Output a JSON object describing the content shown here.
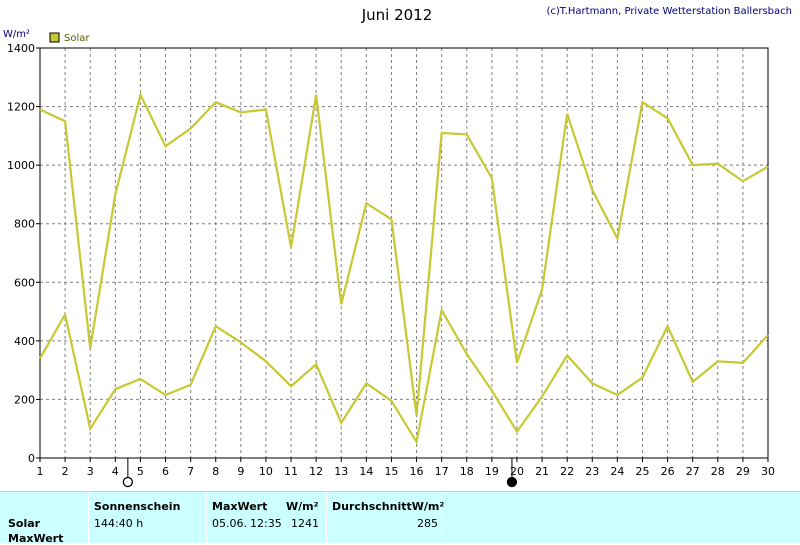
{
  "chart_data": {
    "type": "line",
    "title": "Juni 2012",
    "credit": "(c)T.Hartmann, Private Wetterstation Ballersbach",
    "ylabel": "W/m²",
    "ylim": [
      0,
      1400
    ],
    "yticks": [
      0,
      200,
      400,
      600,
      800,
      1000,
      1200,
      1400
    ],
    "xlim": [
      1,
      30
    ],
    "categories": [
      "1",
      "2",
      "3",
      "4",
      "5",
      "6",
      "7",
      "8",
      "9",
      "10",
      "11",
      "12",
      "13",
      "14",
      "15",
      "16",
      "17",
      "18",
      "19",
      "20",
      "21",
      "22",
      "23",
      "24",
      "25",
      "26",
      "27",
      "28",
      "29",
      "30"
    ],
    "grid": true,
    "legend": "top-left",
    "color": "#c8c832",
    "series": [
      {
        "name": "Solar",
        "role": "max",
        "values": [
          1190,
          1150,
          375,
          900,
          1240,
          1065,
          1125,
          1215,
          1180,
          1190,
          720,
          1240,
          525,
          870,
          815,
          145,
          1110,
          1105,
          955,
          325,
          575,
          1175,
          915,
          750,
          1215,
          1160,
          1000,
          1005,
          945,
          995
        ]
      },
      {
        "name": "",
        "role": "average",
        "values": [
          340,
          490,
          100,
          235,
          270,
          215,
          250,
          450,
          395,
          330,
          245,
          320,
          120,
          255,
          195,
          55,
          505,
          355,
          230,
          90,
          210,
          350,
          255,
          215,
          275,
          450,
          260,
          330,
          325,
          420
        ]
      }
    ],
    "moon_markers": [
      {
        "day": 4.5,
        "phase": "full-moon"
      },
      {
        "day": 19.8,
        "phase": "new-moon"
      }
    ]
  },
  "stats": {
    "row_labels": [
      "Solar",
      "MaxWert"
    ],
    "sunshine_header": "Sonnenschein",
    "sunshine_value": "144:40 h",
    "maxwert_header": "MaxWert",
    "maxwert_unit": "W/m²",
    "maxwert_date": "05.06.",
    "maxwert_time": "12:35",
    "maxwert_value": "1241",
    "avg_header": "DurchschnittW/m²",
    "avg_value": "285"
  }
}
